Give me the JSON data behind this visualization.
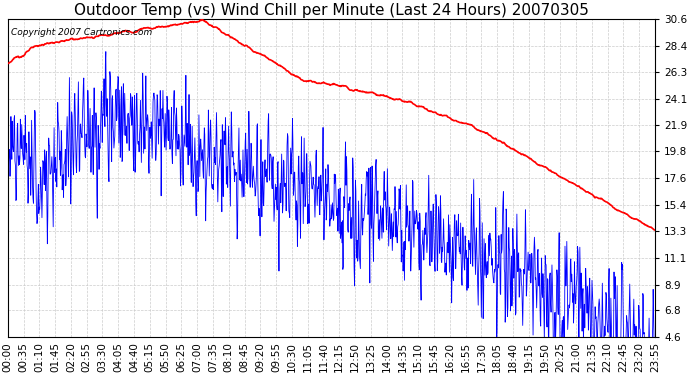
{
  "title": "Outdoor Temp (vs) Wind Chill per Minute (Last 24 Hours) 20070305",
  "copyright_text": "Copyright 2007 Cartronics.com",
  "y_ticks": [
    4.6,
    6.8,
    8.9,
    11.1,
    13.3,
    15.4,
    17.6,
    19.8,
    21.9,
    24.1,
    26.3,
    28.4,
    30.6
  ],
  "ylim": [
    4.6,
    30.6
  ],
  "x_labels": [
    "00:00",
    "00:35",
    "01:10",
    "01:45",
    "02:20",
    "02:55",
    "03:30",
    "04:05",
    "04:40",
    "05:15",
    "05:50",
    "06:25",
    "07:00",
    "07:35",
    "08:10",
    "08:45",
    "09:20",
    "09:55",
    "10:30",
    "11:05",
    "11:40",
    "12:15",
    "12:50",
    "13:25",
    "14:00",
    "14:35",
    "15:10",
    "15:45",
    "16:20",
    "16:55",
    "17:30",
    "18:05",
    "18:40",
    "19:15",
    "19:50",
    "20:25",
    "21:00",
    "21:35",
    "22:10",
    "22:45",
    "23:20",
    "23:55"
  ],
  "blue_color": "#0000ff",
  "red_color": "#ff0000",
  "background_color": "#ffffff",
  "grid_color": "#cccccc",
  "title_fontsize": 11,
  "copyright_fontsize": 6.5,
  "tick_fontsize": 7.5,
  "fig_width": 6.9,
  "fig_height": 3.75,
  "dpi": 100
}
